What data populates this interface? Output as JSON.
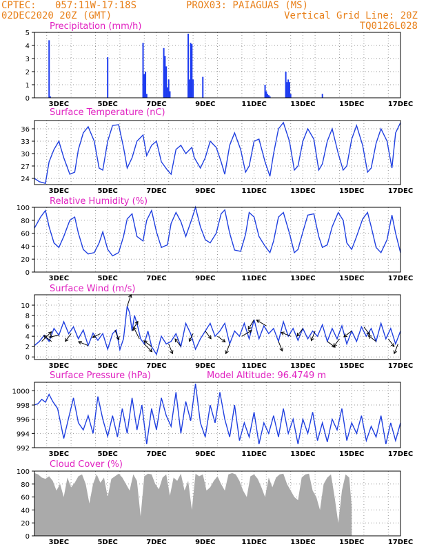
{
  "header": {
    "line1_left": "CPTEC:",
    "coords": "057:11W-17:18S",
    "station": "PROX03: PAIAGUAS (MS)",
    "datetime": "02DEC2020 20Z (GMT)",
    "vgrid": "Vertical Grid Line: 20Z",
    "code": "TQ0126L028"
  },
  "colors": {
    "header": "#e8801a",
    "title": "#e020c0",
    "line": "#2040e0",
    "bar": "#1e3cf0",
    "cloud": "#aaaaaa"
  },
  "chart_data": [
    {
      "type": "bar",
      "title": "Precipitation (mm/h)",
      "ylim": [
        0,
        5
      ],
      "yticks": [
        0,
        1,
        2,
        3,
        4,
        5
      ],
      "xticklabels": [
        "3DEC",
        "5DEC",
        "7DEC",
        "9DEC",
        "11DEC",
        "13DEC",
        "15DEC",
        "17DEC"
      ],
      "x": [
        0.6,
        0.65,
        3.0,
        4.45,
        4.5,
        4.55,
        4.6,
        5.3,
        5.35,
        5.4,
        5.45,
        5.5,
        5.55,
        6.3,
        6.35,
        6.4,
        6.45,
        6.5,
        6.9,
        9.45,
        9.5,
        9.55,
        9.6,
        9.65,
        10.3,
        10.35,
        10.4,
        10.45,
        10.5,
        11.8
      ],
      "values": [
        4.4,
        0.1,
        3.1,
        4.2,
        1.8,
        2.0,
        0.3,
        3.8,
        3.2,
        2.4,
        0.8,
        1.4,
        0.5,
        4.9,
        1.4,
        4.2,
        4.1,
        1.4,
        1.6,
        1.0,
        0.5,
        0.3,
        0.2,
        0.1,
        2.0,
        1.2,
        1.4,
        1.2,
        0.3,
        0.3
      ]
    },
    {
      "type": "line",
      "title": "Surface Temperature (nC)",
      "ylim": [
        22.5,
        38
      ],
      "yticks": [
        24,
        27,
        30,
        33,
        36
      ],
      "xticklabels": [
        "3DEC",
        "5DEC",
        "7DEC",
        "9DEC",
        "11DEC",
        "13DEC",
        "15DEC",
        "17DEC"
      ],
      "x": [
        0,
        0.2,
        0.45,
        0.6,
        0.8,
        1.0,
        1.2,
        1.45,
        1.65,
        1.8,
        2.0,
        2.2,
        2.45,
        2.65,
        2.8,
        3.0,
        3.2,
        3.45,
        3.65,
        3.8,
        4.0,
        4.2,
        4.45,
        4.6,
        4.8,
        5.0,
        5.2,
        5.45,
        5.6,
        5.8,
        6.0,
        6.2,
        6.45,
        6.55,
        6.8,
        7.0,
        7.2,
        7.45,
        7.65,
        7.8,
        8.0,
        8.2,
        8.45,
        8.65,
        8.8,
        9.0,
        9.2,
        9.45,
        9.65,
        9.8,
        10.0,
        10.2,
        10.45,
        10.65,
        10.8,
        11.0,
        11.2,
        11.45,
        11.65,
        11.8,
        12.0,
        12.2,
        12.45,
        12.65,
        12.8,
        13.0,
        13.2,
        13.45,
        13.65,
        13.8,
        14.0,
        14.2,
        14.45,
        14.65,
        14.8,
        15.0
      ],
      "values": [
        24,
        23.2,
        22.8,
        28,
        31,
        33,
        29,
        25,
        25.5,
        31,
        35,
        36.5,
        33,
        26.5,
        26,
        33,
        36.8,
        37,
        31.5,
        26.5,
        29,
        33,
        34.5,
        29.5,
        32,
        33,
        28,
        26,
        25,
        31,
        32,
        30,
        31.5,
        29,
        26.5,
        29,
        33,
        31.5,
        28,
        25,
        32,
        35,
        31,
        25.5,
        27,
        33,
        33.5,
        28,
        24.5,
        30,
        36,
        37.5,
        33,
        26,
        27,
        33,
        36,
        33.5,
        26,
        27.5,
        33,
        36,
        30,
        26,
        27,
        33.5,
        36.8,
        32,
        25.5,
        26.5,
        32.5,
        36,
        33,
        26.5,
        35,
        37.5
      ]
    },
    {
      "type": "line",
      "title": "Relative Humidity (%)",
      "ylim": [
        0,
        100
      ],
      "yticks": [
        0,
        20,
        40,
        60,
        80,
        100
      ],
      "xticklabels": [
        "3DEC",
        "5DEC",
        "7DEC",
        "9DEC",
        "11DEC",
        "13DEC",
        "15DEC",
        "17DEC"
      ],
      "x": [
        0,
        0.25,
        0.45,
        0.6,
        0.8,
        1.0,
        1.2,
        1.45,
        1.65,
        1.8,
        2.0,
        2.2,
        2.45,
        2.65,
        2.8,
        3.0,
        3.2,
        3.45,
        3.65,
        3.8,
        4.0,
        4.2,
        4.45,
        4.6,
        4.8,
        5.0,
        5.2,
        5.45,
        5.6,
        5.8,
        6.0,
        6.2,
        6.45,
        6.6,
        6.8,
        7.0,
        7.2,
        7.45,
        7.65,
        7.8,
        8.0,
        8.2,
        8.45,
        8.65,
        8.8,
        9.0,
        9.2,
        9.45,
        9.65,
        9.8,
        10.0,
        10.2,
        10.45,
        10.65,
        10.8,
        11.0,
        11.2,
        11.45,
        11.65,
        11.8,
        12.0,
        12.2,
        12.45,
        12.65,
        12.8,
        13.0,
        13.2,
        13.45,
        13.65,
        13.8,
        14.0,
        14.2,
        14.45,
        14.65,
        14.8,
        15.0
      ],
      "values": [
        68,
        85,
        95,
        70,
        45,
        38,
        55,
        80,
        85,
        60,
        35,
        28,
        30,
        45,
        62,
        35,
        25,
        30,
        55,
        82,
        90,
        55,
        48,
        80,
        95,
        62,
        38,
        42,
        75,
        92,
        78,
        55,
        82,
        100,
        70,
        50,
        45,
        60,
        90,
        96,
        60,
        34,
        32,
        58,
        92,
        85,
        55,
        40,
        30,
        48,
        85,
        92,
        60,
        30,
        35,
        62,
        88,
        90,
        55,
        38,
        42,
        70,
        92,
        80,
        45,
        35,
        55,
        82,
        92,
        70,
        38,
        30,
        50,
        88,
        60,
        30
      ]
    },
    {
      "type": "line",
      "title": "Surface Wind (m/s)",
      "ylim": [
        -0.5,
        12
      ],
      "yticks": [
        0,
        2,
        4,
        6,
        8,
        10
      ],
      "xticklabels": [
        "3DEC",
        "5DEC",
        "7DEC",
        "9DEC",
        "11DEC",
        "13DEC",
        "15DEC",
        "17DEC"
      ],
      "x": [
        0,
        0.2,
        0.4,
        0.6,
        0.8,
        1.0,
        1.2,
        1.4,
        1.6,
        1.8,
        2.0,
        2.2,
        2.4,
        2.6,
        2.8,
        3.0,
        3.2,
        3.35,
        3.5,
        3.65,
        3.8,
        3.9,
        4.0,
        4.1,
        4.2,
        4.35,
        4.5,
        4.65,
        4.8,
        5.0,
        5.2,
        5.4,
        5.6,
        5.8,
        6.0,
        6.2,
        6.4,
        6.6,
        6.8,
        7.0,
        7.2,
        7.4,
        7.6,
        7.8,
        8.0,
        8.2,
        8.4,
        8.6,
        8.8,
        9.0,
        9.2,
        9.4,
        9.6,
        9.8,
        10.0,
        10.2,
        10.4,
        10.6,
        10.8,
        11.0,
        11.2,
        11.4,
        11.6,
        11.8,
        12.0,
        12.2,
        12.4,
        12.6,
        12.8,
        13.0,
        13.2,
        13.4,
        13.6,
        13.8,
        14.0,
        14.2,
        14.4,
        14.6,
        14.8,
        15.0
      ],
      "values": [
        2.2,
        3.0,
        4.2,
        3.0,
        5.5,
        4.2,
        6.8,
        4.5,
        5.8,
        3.5,
        5.2,
        2.2,
        4.6,
        3.2,
        4.5,
        1.5,
        4.5,
        5.2,
        1.4,
        3.5,
        9.8,
        8.5,
        5.0,
        8.0,
        6.5,
        3.5,
        2.5,
        5.0,
        2.0,
        0.5,
        4.0,
        2.5,
        3.0,
        4.5,
        2.0,
        6.5,
        4.5,
        1.5,
        3.5,
        5.0,
        6.5,
        4.0,
        5.0,
        6.5,
        2.5,
        5.0,
        4.0,
        6.5,
        3.5,
        7.2,
        3.5,
        6.0,
        4.5,
        5.5,
        3.0,
        6.8,
        4.0,
        5.5,
        3.2,
        5.5,
        3.5,
        5.0,
        4.0,
        6.2,
        3.0,
        5.5,
        3.5,
        6.0,
        2.5,
        5.0,
        3.0,
        5.8,
        4.0,
        5.5,
        3.0,
        6.5,
        3.5,
        5.5,
        2.5,
        5.0
      ],
      "arrows": [
        {
          "x": 0.3,
          "u": 0.5,
          "v": 0.5
        },
        {
          "x": 0.7,
          "u": -0.4,
          "v": 0.3
        },
        {
          "x": 1.0,
          "u": -0.5,
          "v": -0.1
        },
        {
          "x": 1.5,
          "u": -0.3,
          "v": -0.4
        },
        {
          "x": 2.2,
          "u": -0.5,
          "v": 0.2
        },
        {
          "x": 2.7,
          "u": -0.4,
          "v": -0.2
        },
        {
          "x": 3.3,
          "u": 0.2,
          "v": -0.5
        },
        {
          "x": 3.8,
          "u": 0.2,
          "v": 0.6
        },
        {
          "x": 4.0,
          "u": 0.3,
          "v": 0.5
        },
        {
          "x": 4.3,
          "u": -0.3,
          "v": 0.6
        },
        {
          "x": 4.5,
          "u": 0.4,
          "v": -0.4
        },
        {
          "x": 4.8,
          "u": -0.4,
          "v": 0.3
        },
        {
          "x": 5.5,
          "u": 0.2,
          "v": -0.5
        },
        {
          "x": 6.0,
          "u": -0.3,
          "v": 0.4
        },
        {
          "x": 6.5,
          "u": -0.2,
          "v": -0.4
        },
        {
          "x": 7.0,
          "u": 0.3,
          "v": -0.4
        },
        {
          "x": 7.5,
          "u": 0.4,
          "v": -0.3
        },
        {
          "x": 8.0,
          "u": -0.2,
          "v": -0.5
        },
        {
          "x": 8.5,
          "u": 0.5,
          "v": 0.3
        },
        {
          "x": 9.0,
          "u": -0.3,
          "v": -0.5
        },
        {
          "x": 9.5,
          "u": -0.5,
          "v": 0.3
        },
        {
          "x": 10.0,
          "u": 0.2,
          "v": -0.5
        },
        {
          "x": 10.5,
          "u": -0.5,
          "v": 0.2
        },
        {
          "x": 11.0,
          "u": -0.3,
          "v": -0.4
        },
        {
          "x": 11.5,
          "u": -0.2,
          "v": -0.5
        },
        {
          "x": 12.0,
          "u": 0.4,
          "v": -0.3
        },
        {
          "x": 12.5,
          "u": -0.3,
          "v": -0.4
        },
        {
          "x": 13.0,
          "u": -0.4,
          "v": -0.3
        },
        {
          "x": 13.5,
          "u": 0.3,
          "v": -0.4
        },
        {
          "x": 14.0,
          "u": -0.4,
          "v": 0.3
        },
        {
          "x": 14.5,
          "u": 0.3,
          "v": -0.4
        },
        {
          "x": 14.9,
          "u": -0.2,
          "v": -0.5
        }
      ]
    },
    {
      "type": "line",
      "title": "Surface Pressure (hPa)",
      "subtitle": "Model Altitude: 96.4749 m",
      "ylim": [
        992,
        1001.2
      ],
      "yticks": [
        992,
        994,
        996,
        998,
        1000
      ],
      "xticklabels": [
        "3DEC",
        "5DEC",
        "7DEC",
        "9DEC",
        "11DEC",
        "13DEC",
        "15DEC",
        "17DEC"
      ],
      "x": [
        0,
        0.15,
        0.3,
        0.45,
        0.6,
        0.75,
        0.95,
        1.2,
        1.4,
        1.6,
        1.8,
        2.0,
        2.2,
        2.4,
        2.6,
        2.8,
        3.0,
        3.2,
        3.4,
        3.6,
        3.8,
        4.0,
        4.2,
        4.4,
        4.6,
        4.8,
        5.0,
        5.2,
        5.4,
        5.6,
        5.8,
        6.0,
        6.2,
        6.4,
        6.6,
        6.8,
        7.0,
        7.2,
        7.4,
        7.6,
        7.8,
        8.0,
        8.2,
        8.4,
        8.6,
        8.8,
        9.0,
        9.2,
        9.4,
        9.6,
        9.8,
        10.0,
        10.2,
        10.4,
        10.6,
        10.8,
        11.0,
        11.2,
        11.4,
        11.6,
        11.8,
        12.0,
        12.2,
        12.4,
        12.6,
        12.8,
        13.0,
        13.2,
        13.4,
        13.6,
        13.8,
        14.0,
        14.2,
        14.4,
        14.6,
        14.8,
        15.0
      ],
      "values": [
        998,
        998.2,
        998.8,
        998.4,
        999.5,
        998.5,
        997.5,
        993.3,
        996.2,
        999.0,
        995.5,
        994.5,
        996.5,
        994,
        999.2,
        996,
        993.6,
        996.5,
        993.5,
        997.5,
        994,
        999.0,
        994.5,
        998.0,
        992.5,
        997.5,
        994.5,
        999.0,
        996.5,
        995,
        999.8,
        994,
        998.5,
        995.8,
        1001,
        995.5,
        993.5,
        998.0,
        995.5,
        999.8,
        996,
        993.5,
        998.0,
        993,
        995.5,
        993.5,
        997,
        992.5,
        995.5,
        994,
        996.5,
        993.5,
        997.5,
        994,
        996,
        992.5,
        996,
        994,
        997,
        993,
        995.5,
        992.8,
        996,
        994.5,
        997.5,
        993,
        995.5,
        994,
        996.5,
        993,
        995,
        993.5,
        996.5,
        992.5,
        995.5,
        993,
        995.5
      ]
    },
    {
      "type": "area",
      "title": "Cloud Cover (%)",
      "ylim": [
        0,
        100
      ],
      "yticks": [
        0,
        20,
        40,
        60,
        80,
        100
      ],
      "xticklabels": [
        "3DEC",
        "5DEC",
        "7DEC",
        "9DEC",
        "11DEC",
        "13DEC",
        "15DEC",
        "17DEC"
      ],
      "x": [
        0,
        0.15,
        0.3,
        0.45,
        0.6,
        0.75,
        0.9,
        1.05,
        1.2,
        1.35,
        1.5,
        1.65,
        1.8,
        1.95,
        2.1,
        2.25,
        2.4,
        2.55,
        2.7,
        2.85,
        3.0,
        3.15,
        3.3,
        3.45,
        3.6,
        3.75,
        3.9,
        4.05,
        4.2,
        4.35,
        4.5,
        4.65,
        4.8,
        4.95,
        5.1,
        5.25,
        5.4,
        5.55,
        5.7,
        5.85,
        6.0,
        6.15,
        6.3,
        6.45,
        6.6,
        6.75,
        6.9,
        7.05,
        7.2,
        7.35,
        7.5,
        7.65,
        7.8,
        7.95,
        8.1,
        8.25,
        8.4,
        8.55,
        8.7,
        8.85,
        9.0,
        9.15,
        9.3,
        9.45,
        9.6,
        9.75,
        9.9,
        10.05,
        10.2,
        10.35,
        10.5,
        10.65,
        10.8,
        10.95,
        11.1,
        11.25,
        11.4,
        11.55,
        11.7,
        11.85,
        12.0,
        12.15,
        12.3,
        12.45,
        12.6,
        12.75,
        12.9,
        13.0
      ],
      "values": [
        97,
        95,
        90,
        88,
        92,
        85,
        70,
        80,
        60,
        90,
        75,
        82,
        92,
        95,
        80,
        50,
        80,
        95,
        82,
        90,
        60,
        88,
        92,
        96,
        90,
        80,
        70,
        95,
        85,
        30,
        92,
        96,
        95,
        80,
        72,
        90,
        95,
        62,
        90,
        85,
        96,
        70,
        85,
        40,
        96,
        92,
        95,
        70,
        75,
        85,
        92,
        80,
        70,
        95,
        97,
        95,
        85,
        70,
        60,
        92,
        95,
        88,
        75,
        60,
        90,
        75,
        90,
        95,
        96,
        80,
        70,
        60,
        55,
        90,
        95,
        96,
        70,
        60,
        40,
        80,
        90,
        95,
        60,
        20,
        70,
        95,
        90,
        45
      ]
    }
  ]
}
